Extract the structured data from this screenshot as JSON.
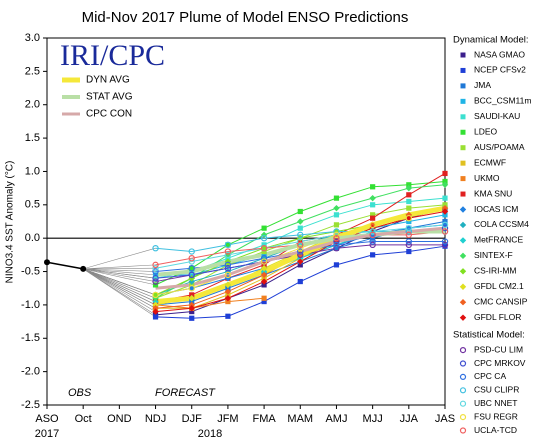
{
  "chart_data": {
    "type": "line",
    "title": "Mid-Nov 2017 Plume of Model ENSO Predictions",
    "y_label": "NINO3.4 SST Anomaly (°C)",
    "logo": "IRI/CPC",
    "annotations": [
      "OBS",
      "FORECAST"
    ],
    "years": [
      "2017",
      "2018"
    ],
    "categories": [
      "ASO",
      "Oct",
      "OND",
      "NDJ",
      "DJF",
      "JFM",
      "FMA",
      "MAM",
      "AMJ",
      "MJJ",
      "JJA",
      "JAS"
    ],
    "ylim": [
      -2.5,
      3.0
    ],
    "yticks": [
      {
        "value": 3.0,
        "label": "3.0"
      },
      2.5,
      {
        "value": 2.0,
        "label": "2.0"
      },
      1.5,
      {
        "value": 1.0,
        "label": "1.0"
      },
      0.5,
      {
        "value": 0.0,
        "label": "0.0"
      },
      -0.5,
      {
        "value": -1.0,
        "label": "-1.0"
      },
      -1.5,
      {
        "value": -2.0,
        "label": "-2.0"
      },
      -2.5
    ],
    "observed": {
      "color": "#000000",
      "values": [
        -0.36,
        -0.46,
        null,
        null,
        null,
        null,
        null,
        null,
        null,
        null,
        null,
        null
      ]
    },
    "connector_color": "#8a8a8a",
    "averages": [
      {
        "name": "DYN AVG",
        "color": "#f5e83a",
        "values": [
          null,
          null,
          null,
          -0.95,
          -0.9,
          -0.7,
          -0.5,
          -0.25,
          0.0,
          0.2,
          0.35,
          0.45
        ]
      },
      {
        "name": "STAT AVG",
        "color": "#b9dfa6",
        "values": [
          null,
          null,
          null,
          -0.55,
          -0.5,
          -0.35,
          -0.25,
          -0.1,
          0.0,
          0.05,
          0.1,
          0.1
        ]
      },
      {
        "name": "CPC CON",
        "color": "#d6a9a9",
        "values": [
          null,
          null,
          null,
          -0.75,
          -0.7,
          -0.55,
          -0.35,
          -0.2,
          -0.05,
          0.05,
          0.1,
          0.15
        ]
      }
    ],
    "series_groups": [
      {
        "title": "Dynamical Model:",
        "series": [
          {
            "name": "NASA GMAO",
            "color": "#3b1f8c",
            "marker": "square",
            "values": [
              null,
              null,
              null,
              -1.15,
              -1.1,
              -0.9,
              -0.7,
              -0.4,
              -0.15,
              0.1,
              0.3,
              0.45
            ]
          },
          {
            "name": "NCEP CFSv2",
            "color": "#1f3fd6",
            "marker": "square",
            "values": [
              null,
              null,
              null,
              -1.18,
              -1.2,
              -1.17,
              -0.95,
              -0.65,
              -0.4,
              -0.25,
              -0.2,
              -0.12
            ]
          },
          {
            "name": "JMA",
            "color": "#1f78d6",
            "marker": "square",
            "values": [
              null,
              null,
              null,
              -1.0,
              -0.95,
              -0.75,
              -0.55,
              -0.35,
              -0.15,
              0.0,
              0.15,
              0.25
            ]
          },
          {
            "name": "BCC_CSM11m",
            "color": "#1fb4e6",
            "marker": "square",
            "values": [
              null,
              null,
              null,
              -0.55,
              -0.55,
              -0.4,
              -0.25,
              -0.1,
              0.05,
              0.15,
              0.25,
              0.35
            ]
          },
          {
            "name": "SAUDI-KAU",
            "color": "#3ce0d0",
            "marker": "square",
            "values": [
              null,
              null,
              null,
              -0.6,
              -0.5,
              -0.3,
              -0.1,
              0.15,
              0.35,
              0.5,
              0.55,
              0.6
            ]
          },
          {
            "name": "LDEO",
            "color": "#33e033",
            "marker": "square",
            "values": [
              null,
              null,
              null,
              -0.7,
              -0.45,
              -0.1,
              0.15,
              0.4,
              0.6,
              0.77,
              0.8,
              0.85
            ]
          },
          {
            "name": "AUS/POAMA",
            "color": "#9ae033",
            "marker": "square",
            "values": [
              null,
              null,
              null,
              -0.9,
              -0.7,
              -0.4,
              -0.2,
              0.0,
              0.2,
              0.35,
              0.45,
              0.5
            ]
          },
          {
            "name": "ECMWF",
            "color": "#e0c020",
            "marker": "square",
            "values": [
              null,
              null,
              null,
              -1.05,
              -1.05,
              -0.85,
              -0.6,
              -0.3,
              -0.05,
              0.15,
              0.3,
              null
            ]
          },
          {
            "name": "UKMO",
            "color": "#f08020",
            "marker": "square",
            "values": [
              null,
              null,
              null,
              -1.0,
              -1.05,
              -0.95,
              -0.9,
              null,
              null,
              null,
              null,
              null
            ]
          },
          {
            "name": "KMA SNU",
            "color": "#e02020",
            "marker": "square",
            "values": [
              null,
              null,
              null,
              -0.95,
              -0.85,
              -0.6,
              -0.4,
              -0.05,
              0.05,
              0.3,
              0.65,
              0.97
            ]
          },
          {
            "name": "IOCAS ICM",
            "color": "#2080e0",
            "marker": "diamond",
            "values": [
              null,
              null,
              null,
              -0.85,
              -0.75,
              -0.6,
              -0.45,
              -0.3,
              -0.1,
              0.05,
              0.15,
              0.2
            ]
          },
          {
            "name": "COLA CCSM4",
            "color": "#20b0c0",
            "marker": "diamond",
            "values": [
              null,
              null,
              null,
              -0.85,
              -0.65,
              -0.5,
              -0.3,
              -0.1,
              0.05,
              0.2,
              0.35,
              0.45
            ]
          },
          {
            "name": "MetFRANCE",
            "color": "#20d0d0",
            "marker": "diamond",
            "values": [
              null,
              null,
              null,
              -0.95,
              -0.9,
              -0.7,
              -0.5,
              -0.3,
              -0.1,
              0.1,
              null,
              null
            ]
          },
          {
            "name": "SINTEX-F",
            "color": "#40e060",
            "marker": "diamond",
            "values": [
              null,
              null,
              null,
              -0.9,
              -0.6,
              -0.25,
              0.05,
              0.25,
              0.45,
              0.6,
              0.75,
              0.8
            ]
          },
          {
            "name": "CS-IRI-MM",
            "color": "#80e020",
            "marker": "diamond",
            "values": [
              null,
              null,
              null,
              -0.85,
              -0.6,
              -0.35,
              -0.15,
              0.0,
              0.1,
              0.2,
              0.3,
              null
            ]
          },
          {
            "name": "GFDL CM2.1",
            "color": "#e0e020",
            "marker": "diamond",
            "values": [
              null,
              null,
              null,
              -1.0,
              -0.9,
              -0.7,
              -0.45,
              -0.2,
              0.05,
              0.2,
              0.35,
              0.45
            ]
          },
          {
            "name": "CMC CANSIP",
            "color": "#f06020",
            "marker": "diamond",
            "values": [
              null,
              null,
              null,
              -1.05,
              -1.0,
              -0.8,
              -0.55,
              -0.25,
              0.0,
              0.2,
              0.35,
              0.45
            ]
          },
          {
            "name": "GFDL FLOR",
            "color": "#e01010",
            "marker": "diamond",
            "values": [
              null,
              null,
              null,
              -1.1,
              -1.05,
              -0.9,
              -0.65,
              -0.35,
              -0.05,
              0.15,
              0.3,
              0.4
            ]
          }
        ]
      },
      {
        "title": "Statistical Model:",
        "series": [
          {
            "name": "PSD-CU LIM",
            "color": "#7030a0",
            "marker": "circle",
            "values": [
              null,
              null,
              null,
              -0.65,
              -0.55,
              -0.45,
              -0.35,
              -0.25,
              -0.15,
              -0.1,
              -0.1,
              -0.1
            ]
          },
          {
            "name": "CPC MRKOV",
            "color": "#4050d0",
            "marker": "circle",
            "values": [
              null,
              null,
              null,
              -0.6,
              -0.55,
              -0.45,
              -0.35,
              -0.2,
              -0.05,
              0.05,
              0.1,
              0.15
            ]
          },
          {
            "name": "CPC CA",
            "color": "#3070e0",
            "marker": "circle",
            "values": [
              null,
              null,
              null,
              -0.5,
              -0.45,
              -0.4,
              -0.3,
              -0.2,
              -0.1,
              -0.05,
              -0.05,
              -0.05
            ]
          },
          {
            "name": "CSU CLIPR",
            "color": "#40c0e0",
            "marker": "circle",
            "values": [
              null,
              null,
              null,
              -0.15,
              -0.2,
              -0.1,
              0.0,
              0.05,
              0.1,
              0.1,
              0.1,
              0.1
            ]
          },
          {
            "name": "UBC NNET",
            "color": "#60d8e0",
            "marker": "circle",
            "values": [
              null,
              null,
              null,
              -0.45,
              -0.35,
              -0.25,
              -0.15,
              -0.05,
              0.05,
              0.1,
              0.15,
              0.2
            ]
          },
          {
            "name": "FSU REGR",
            "color": "#f0e040",
            "marker": "circle",
            "values": [
              null,
              null,
              null,
              -0.85,
              -0.75,
              -0.55,
              -0.35,
              -0.15,
              0.05,
              0.2,
              0.3,
              null
            ]
          },
          {
            "name": "UCLA-TCD",
            "color": "#f06060",
            "marker": "circle",
            "values": [
              null,
              null,
              null,
              -0.4,
              -0.3,
              -0.2,
              -0.15,
              -0.1,
              0.0,
              0.05,
              0.05,
              0.1
            ]
          }
        ]
      }
    ]
  }
}
